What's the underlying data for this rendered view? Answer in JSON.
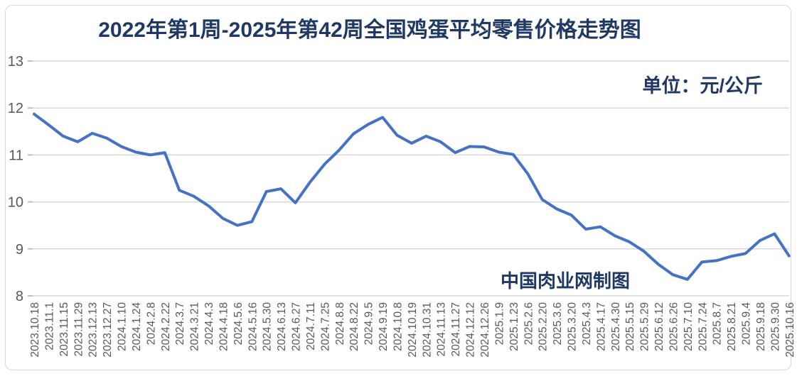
{
  "title": "2022年第1周-2025年第42周全国鸡蛋平均零售价格走势图",
  "unit_label": "单位：元/公斤",
  "watermark": "中国肉业网制图",
  "colors": {
    "line": "#4472C4",
    "title_text": "#1F3864",
    "axis_text": "#595959",
    "gridline": "#D9D9D9",
    "tick_mark": "#BFBFBF",
    "card_border": "#D9D9D9",
    "background": "#FFFFFF"
  },
  "chart_data": {
    "type": "line",
    "title": "2022年第1周-2025年第42周全国鸡蛋平均零售价格走势图",
    "ylabel": "",
    "xlabel": "",
    "unit": "元/公斤",
    "ylim": [
      8,
      13
    ],
    "y_ticks": [
      13,
      12,
      11,
      10,
      9,
      8
    ],
    "grid": true,
    "legend_position": "none",
    "categories": [
      "2023.10.18",
      "2023.11.1",
      "2023.11.15",
      "2023.11.29",
      "2023.12.13",
      "2023.12.27",
      "2024.1.10",
      "2024.1.24",
      "2024.2.8",
      "2024.2.22",
      "2024.3.7",
      "2024.3.21",
      "2024.4.3",
      "2024.4.18",
      "2024.5.6",
      "2024.5.16",
      "2024.5.30",
      "2024.6.13",
      "2024.6.27",
      "2024.7.11",
      "2024.7.25",
      "2024.8.8",
      "2024.8.22",
      "2024.9.5",
      "2024.9.19",
      "2024.10.8",
      "2024.10.19",
      "2024.10.31",
      "2024.11.13",
      "2024.11.27",
      "2024.12.12",
      "2024.12.26",
      "2025.1.9",
      "2025.1.23",
      "2025.2.6",
      "2025.2.20",
      "2025.3.6",
      "2025.3.20",
      "2025.4.3",
      "2025.4.17",
      "2025.4.30",
      "2025.5.15",
      "2025.5.29",
      "2025.6.12",
      "2025.6.26",
      "2025.7.10",
      "2025.7.24",
      "2025.8.7",
      "2025.8.21",
      "2025.9.4",
      "2025.9.18",
      "2025.9.30",
      "2025.10.16"
    ],
    "values": [
      11.87,
      11.64,
      11.4,
      11.28,
      11.46,
      11.36,
      11.18,
      11.06,
      11.0,
      11.05,
      10.25,
      10.12,
      9.92,
      9.65,
      9.5,
      9.58,
      10.22,
      10.28,
      9.98,
      10.42,
      10.8,
      11.1,
      11.45,
      11.65,
      11.8,
      11.42,
      11.25,
      11.4,
      11.28,
      11.05,
      11.18,
      11.17,
      11.06,
      11.01,
      10.6,
      10.05,
      9.85,
      9.72,
      9.42,
      9.47,
      9.28,
      9.15,
      8.95,
      8.67,
      8.45,
      8.35,
      8.72,
      8.75,
      8.84,
      8.9,
      9.18,
      9.32,
      8.85
    ]
  }
}
